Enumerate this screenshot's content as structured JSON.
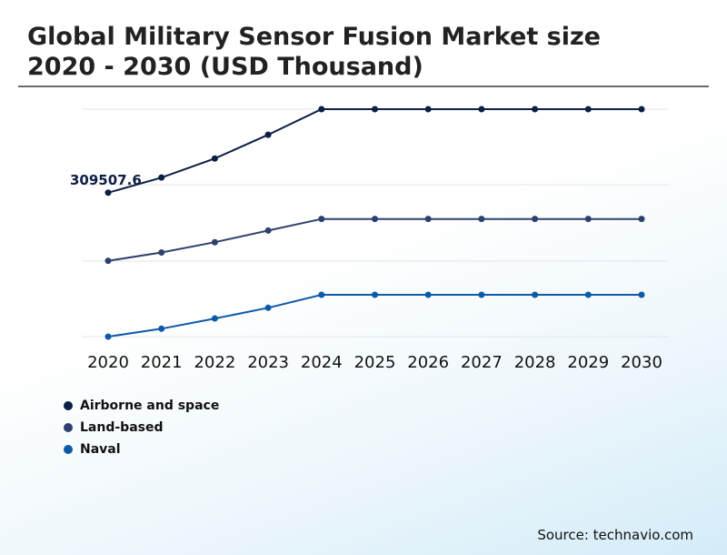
{
  "title": "Global Military Sensor Fusion Market size 2020 - 2030 (USD Thousand)",
  "source": "Source: technavio.com",
  "chart_data": {
    "type": "line",
    "title": "Global Military Sensor Fusion Market size 2020 - 2030 (USD Thousand)",
    "x": [
      "2020",
      "2021",
      "2022",
      "2023",
      "2024",
      "2025",
      "2026",
      "2027",
      "2028",
      "2029",
      "2030"
    ],
    "xlabel": "",
    "ylabel": "",
    "grid": true,
    "y_axis_labels_shown": false,
    "legend_position": "bottom-left",
    "series": [
      {
        "name": "Airborne and space",
        "color": "#0c1f44",
        "values": [
          309507.6,
          342000,
          383000,
          434000,
          489000,
          489000,
          489000,
          489000,
          489000,
          489000,
          489000
        ]
      },
      {
        "name": "Land-based",
        "color": "#2e416e",
        "values": [
          163000,
          181000,
          203000,
          228000,
          253000,
          253000,
          253000,
          253000,
          253000,
          253000,
          253000
        ]
      },
      {
        "name": "Naval",
        "color": "#0e5aa7",
        "values": [
          0,
          17000,
          39000,
          62000,
          90000,
          90000,
          90000,
          90000,
          90000,
          90000,
          90000
        ]
      }
    ],
    "annotations": [
      {
        "series": "Airborne and space",
        "x": "2020",
        "text": "309507.6"
      }
    ]
  }
}
